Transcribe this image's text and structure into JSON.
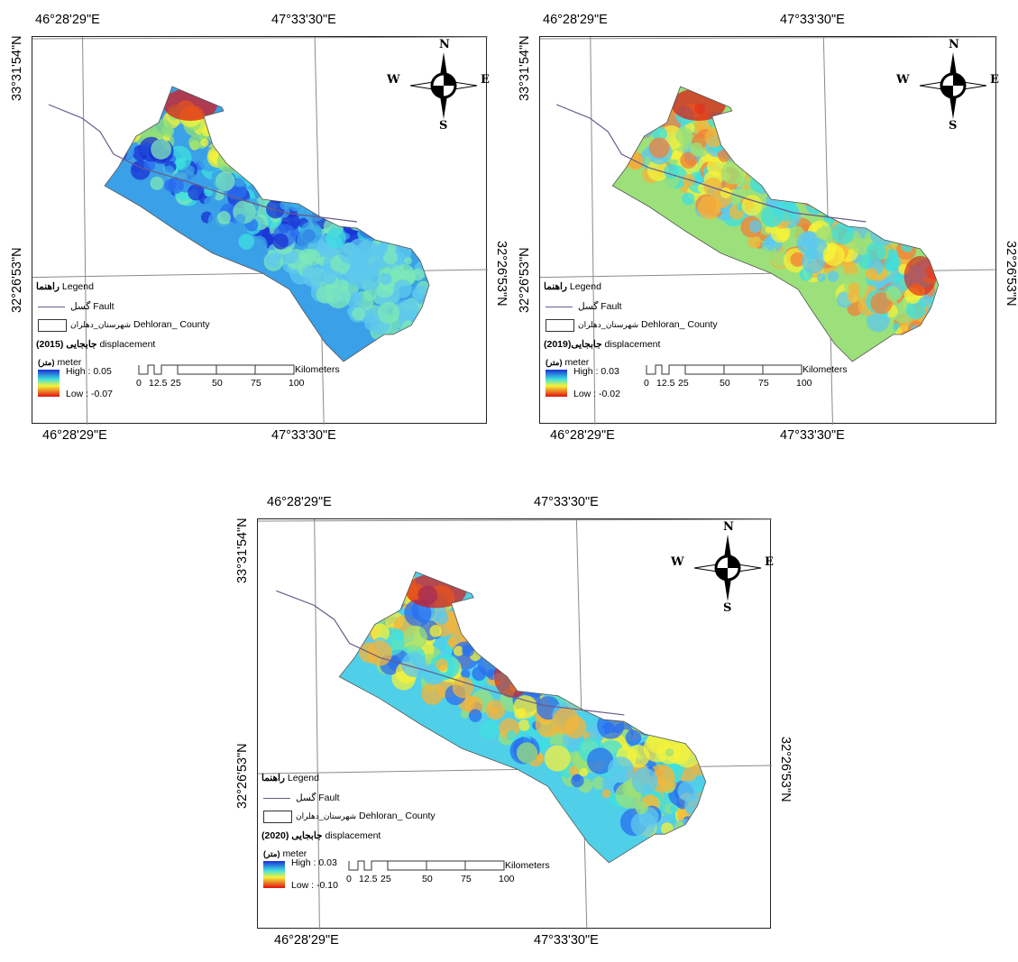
{
  "colors": {
    "frame": "#222222",
    "fault": "#6b5a8a",
    "grid_line": "#8a8a8a",
    "ramp_high": "#1a2fd6",
    "ramp_mid": "#3ee0e0",
    "ramp_yellow": "#f5f23a",
    "ramp_low": "#e01010"
  },
  "panels": [
    {
      "year_title": "جابجایی (2015)",
      "top_lon_left": "46°28'29\"E",
      "top_lon_right": "47°33'30\"E",
      "bottom_lon_left": "46°28'29\"E",
      "bottom_lon_right": "47°33'30\"E",
      "lat_top": "33°31'54\"N",
      "lat_mid_left": "32°26'53\"N",
      "lat_mid_right": "32°26'53\"N",
      "legend": {
        "heading_fa": "راهنما",
        "heading_en": "Legend",
        "fault_fa": "گسل",
        "fault_en": "Fault",
        "county_fa": "شهرستان_دهلران",
        "county_en": "Dehloran_ County",
        "displacement_en": "displacement",
        "unit_fa": "(متر)",
        "unit_en": "meter",
        "high": "High : 0.05",
        "low": "Low : -0.07"
      },
      "scale": {
        "ticks": [
          "0",
          "12.5",
          "25",
          "50",
          "75",
          "100"
        ],
        "unit": "Kilometers"
      },
      "north": {
        "n": "N",
        "s": "S",
        "e": "E",
        "w": "W"
      },
      "style": "blue-dominant"
    },
    {
      "year_title": "جابجایی(2019)",
      "top_lon_left": "46°28'29\"E",
      "top_lon_right": "47°33'30\"E",
      "bottom_lon_left": "46°28'29\"E",
      "bottom_lon_right": "47°33'30\"E",
      "lat_top": "33°31'54\"N",
      "lat_mid_left": "32°26'53\"N",
      "lat_mid_right": "32°26'53\"N",
      "legend": {
        "heading_fa": "راهنما",
        "heading_en": "Legend",
        "fault_fa": "گسل",
        "fault_en": "Fault",
        "county_fa": "شهرستان_دهلران",
        "county_en": "Dehloran_ County",
        "displacement_en": "displacement",
        "unit_fa": "(متر)",
        "unit_en": "meter",
        "high": "High : 0.03",
        "low": "Low : -0.02"
      },
      "scale": {
        "ticks": [
          "0",
          "12.5",
          "25",
          "50",
          "75",
          "100"
        ],
        "unit": "Kilometers"
      },
      "north": {
        "n": "N",
        "s": "S",
        "e": "E",
        "w": "W"
      },
      "style": "yellow-dominant"
    },
    {
      "year_title": "جابجایی (2020)",
      "top_lon_left": "46°28'29\"E",
      "top_lon_right": "47°33'30\"E",
      "bottom_lon_left": "46°28'29\"E",
      "bottom_lon_right": "47°33'30\"E",
      "lat_top": "33°31'54\"N",
      "lat_mid_left": "32°26'53\"N",
      "lat_mid_right": "32°26'53\"N",
      "legend": {
        "heading_fa": "راهنما",
        "heading_en": "Legend",
        "fault_fa": "گسل",
        "fault_en": "Fault",
        "county_fa": "شهرستان_دهلران",
        "county_en": "Dehloran_ County",
        "displacement_en": "displacement",
        "unit_fa": "(متر)",
        "unit_en": "meter",
        "high": "High : 0.03",
        "low": "Low : -0.10"
      },
      "scale": {
        "ticks": [
          "0",
          "12.5",
          "25",
          "50",
          "75",
          "100"
        ],
        "unit": "Kilometers"
      },
      "north": {
        "n": "N",
        "s": "S",
        "e": "E",
        "w": "W"
      },
      "style": "mixed"
    }
  ]
}
